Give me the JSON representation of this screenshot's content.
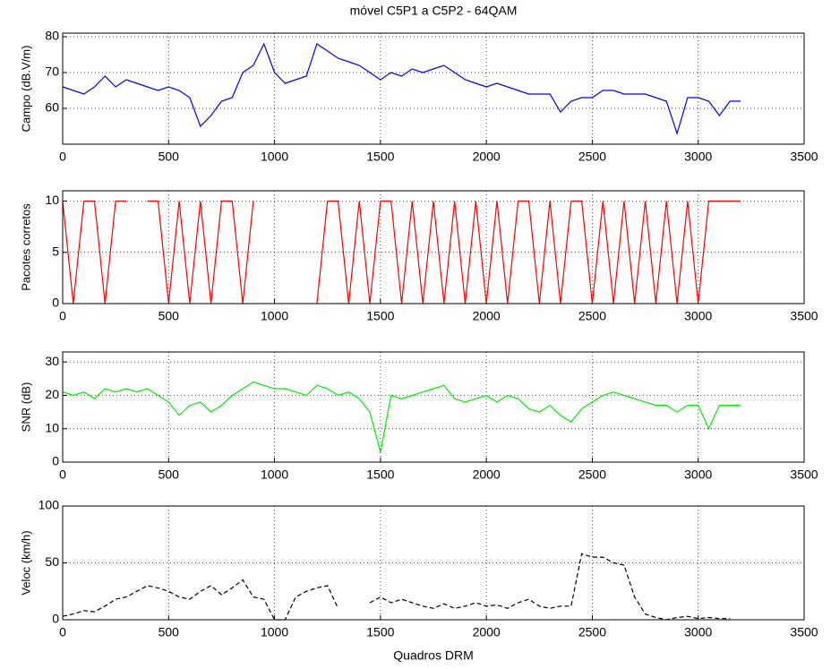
{
  "chart_data": [
    {
      "type": "line",
      "title": "móvel C5P1 a C5P2 - 64QAM",
      "ylabel": "Campo (dB.V/m)",
      "x": [
        0,
        50,
        100,
        150,
        200,
        250,
        300,
        350,
        400,
        450,
        500,
        550,
        600,
        650,
        700,
        750,
        800,
        850,
        900,
        950,
        1000,
        1050,
        1100,
        1150,
        1200,
        1250,
        1300,
        1350,
        1400,
        1450,
        1500,
        1550,
        1600,
        1650,
        1700,
        1750,
        1800,
        1850,
        1900,
        1950,
        2000,
        2050,
        2100,
        2150,
        2200,
        2250,
        2300,
        2350,
        2400,
        2450,
        2500,
        2550,
        2600,
        2650,
        2700,
        2750,
        2800,
        2850,
        2900,
        2950,
        3000,
        3050,
        3100,
        3150,
        3200
      ],
      "series": [
        {
          "color": "#0000ff",
          "values": [
            66,
            65,
            64,
            66,
            69,
            66,
            68,
            67,
            66,
            65,
            66,
            65,
            63,
            55,
            58,
            62,
            63,
            70,
            72,
            78,
            70,
            67,
            68,
            69,
            78,
            76,
            74,
            73,
            72,
            70,
            68,
            70,
            69,
            71,
            70,
            71,
            72,
            70,
            68,
            67,
            66,
            67,
            66,
            65,
            64,
            64,
            64,
            59,
            62,
            63,
            63,
            65,
            65,
            64,
            64,
            64,
            63,
            62,
            53,
            63,
            63,
            62,
            58,
            62,
            62
          ]
        }
      ],
      "xlim": [
        0,
        3500
      ],
      "xticks": [
        0,
        500,
        1000,
        1500,
        2000,
        2500,
        3000,
        3500
      ],
      "ylim": [
        50,
        81
      ],
      "yticks": [
        60,
        70,
        80
      ],
      "grid": true
    },
    {
      "type": "line",
      "ylabel": "Pacotes corretos",
      "x": [
        0,
        50,
        100,
        150,
        200,
        250,
        300,
        350,
        400,
        450,
        500,
        550,
        600,
        650,
        700,
        750,
        800,
        850,
        900,
        950,
        1000,
        1050,
        1100,
        1150,
        1200,
        1250,
        1300,
        1350,
        1400,
        1450,
        1500,
        1550,
        1600,
        1650,
        1700,
        1750,
        1800,
        1850,
        1900,
        1950,
        2000,
        2050,
        2100,
        2150,
        2200,
        2250,
        2300,
        2350,
        2400,
        2450,
        2500,
        2550,
        2600,
        2650,
        2700,
        2750,
        2800,
        2850,
        2900,
        2950,
        3000,
        3050,
        3100,
        3150,
        3200
      ],
      "series": [
        {
          "color": "#ff0000",
          "values": [
            10,
            0,
            10,
            10,
            0,
            10,
            10,
            null,
            10,
            10,
            0,
            10,
            0,
            10,
            0,
            10,
            10,
            0,
            10,
            null,
            null,
            null,
            null,
            null,
            0,
            10,
            10,
            0,
            10,
            0,
            10,
            10,
            0,
            10,
            0,
            10,
            0,
            10,
            0,
            10,
            0,
            10,
            0,
            10,
            10,
            0,
            10,
            0,
            10,
            10,
            0,
            10,
            0,
            10,
            0,
            10,
            0,
            10,
            0,
            10,
            0,
            10,
            10,
            10,
            10
          ]
        }
      ],
      "xlim": [
        0,
        3500
      ],
      "xticks": [
        0,
        500,
        1000,
        1500,
        2000,
        2500,
        3000,
        3500
      ],
      "ylim": [
        0,
        11
      ],
      "yticks": [
        0,
        5,
        10
      ],
      "grid": true
    },
    {
      "type": "line",
      "ylabel": "SNR (dB)",
      "x": [
        0,
        50,
        100,
        150,
        200,
        250,
        300,
        350,
        400,
        450,
        500,
        550,
        600,
        650,
        700,
        750,
        800,
        850,
        900,
        950,
        1000,
        1050,
        1100,
        1150,
        1200,
        1250,
        1300,
        1350,
        1400,
        1450,
        1500,
        1550,
        1600,
        1650,
        1700,
        1750,
        1800,
        1850,
        1900,
        1950,
        2000,
        2050,
        2100,
        2150,
        2200,
        2250,
        2300,
        2350,
        2400,
        2450,
        2500,
        2550,
        2600,
        2650,
        2700,
        2750,
        2800,
        2850,
        2900,
        2950,
        3000,
        3050,
        3100,
        3150,
        3200
      ],
      "series": [
        {
          "color": "#00ee00",
          "values": [
            21,
            20,
            21,
            19,
            22,
            21,
            22,
            21,
            22,
            20,
            18,
            14,
            17,
            18,
            15,
            17,
            20,
            22,
            24,
            23,
            22,
            22,
            21,
            20,
            23,
            22,
            20,
            21,
            19,
            15,
            3,
            20,
            19,
            20,
            21,
            22,
            23,
            19,
            18,
            19,
            20,
            18,
            20,
            19,
            16,
            15,
            17,
            14,
            12,
            16,
            18,
            20,
            21,
            20,
            19,
            18,
            17,
            17,
            15,
            17,
            17,
            10,
            17,
            17,
            17
          ]
        }
      ],
      "xlim": [
        0,
        3500
      ],
      "xticks": [
        0,
        500,
        1000,
        1500,
        2000,
        2500,
        3000,
        3500
      ],
      "ylim": [
        0,
        33
      ],
      "yticks": [
        0,
        10,
        20,
        30
      ],
      "grid": true
    },
    {
      "type": "line",
      "ylabel": "Veloc (km/h)",
      "xlabel": "Quadros DRM",
      "x": [
        0,
        50,
        100,
        150,
        200,
        250,
        300,
        350,
        400,
        450,
        500,
        550,
        600,
        650,
        700,
        750,
        800,
        850,
        900,
        950,
        1000,
        1050,
        1100,
        1150,
        1200,
        1250,
        1300,
        1350,
        1400,
        1450,
        1500,
        1550,
        1600,
        1650,
        1700,
        1750,
        1800,
        1850,
        1900,
        1950,
        2000,
        2050,
        2100,
        2150,
        2200,
        2250,
        2300,
        2350,
        2400,
        2450,
        2500,
        2550,
        2600,
        2650,
        2700,
        2750,
        2800,
        2850,
        2900,
        2950,
        3000,
        3050,
        3100,
        3150,
        3200
      ],
      "series": [
        {
          "color": "#000000",
          "dashed": true,
          "values": [
            3,
            5,
            8,
            7,
            12,
            18,
            20,
            25,
            30,
            28,
            25,
            20,
            18,
            25,
            30,
            22,
            28,
            35,
            20,
            18,
            0,
            0,
            20,
            25,
            28,
            30,
            10,
            null,
            null,
            15,
            20,
            15,
            18,
            15,
            12,
            10,
            14,
            10,
            12,
            15,
            12,
            13,
            10,
            15,
            18,
            12,
            10,
            12,
            12,
            58,
            55,
            55,
            50,
            48,
            20,
            5,
            2,
            0,
            2,
            3,
            1,
            2,
            1,
            1,
            null
          ]
        }
      ],
      "xlim": [
        0,
        3500
      ],
      "xticks": [
        0,
        500,
        1000,
        1500,
        2000,
        2500,
        3000,
        3500
      ],
      "ylim": [
        0,
        100
      ],
      "yticks": [
        0,
        50,
        100
      ],
      "grid": true
    }
  ]
}
